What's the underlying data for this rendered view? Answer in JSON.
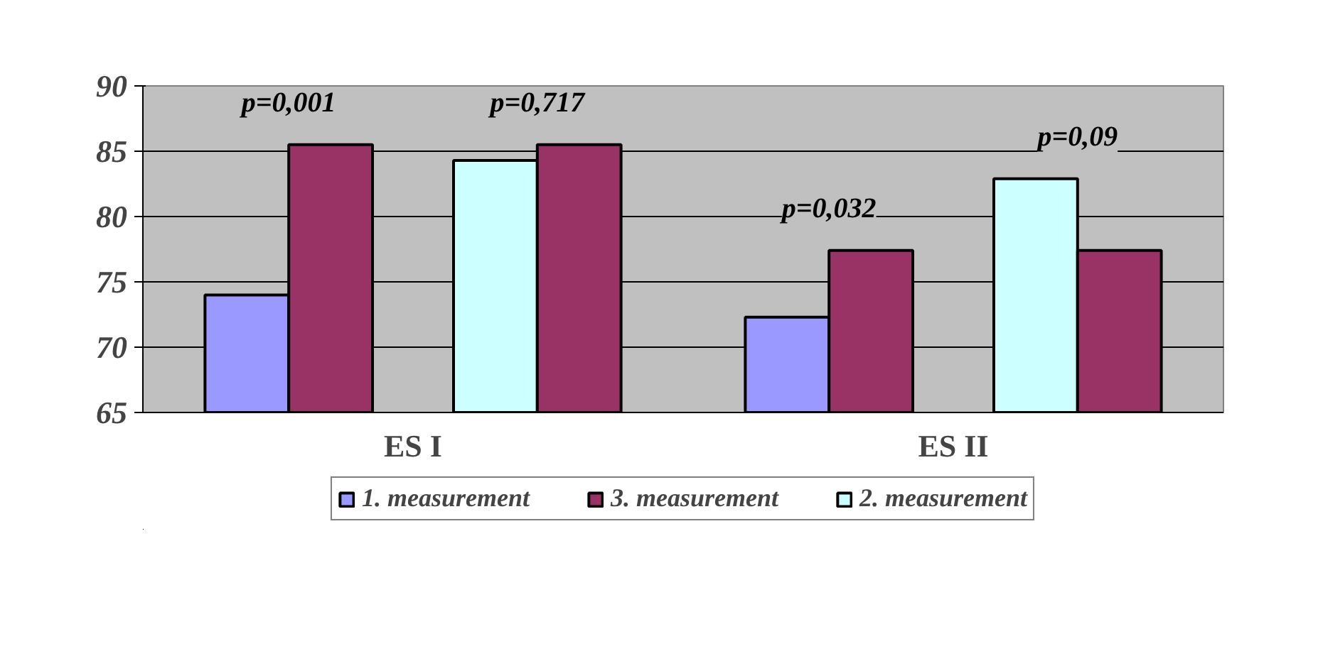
{
  "chart_data": {
    "type": "bar",
    "categories": [
      "ES I",
      "ES II"
    ],
    "series": [
      {
        "name": "1. measurement",
        "color": "#9999ff",
        "values": [
          74,
          72.3
        ]
      },
      {
        "name": "3. measurement",
        "color": "#993366",
        "values": [
          85.5,
          77.4
        ]
      },
      {
        "name": "2. measurement",
        "color": "#ccffff",
        "values": [
          84.3,
          82.9
        ]
      },
      {
        "color": "#993366",
        "values": [
          85.5,
          77.4
        ]
      }
    ],
    "annotations": [
      "p=0,001",
      "p=0,717",
      "p=0,032",
      "p=0,09"
    ],
    "ylim": [
      65,
      90
    ],
    "yticks": [
      65,
      70,
      75,
      80,
      85,
      90
    ],
    "grid": "y",
    "legend": "bottom"
  }
}
